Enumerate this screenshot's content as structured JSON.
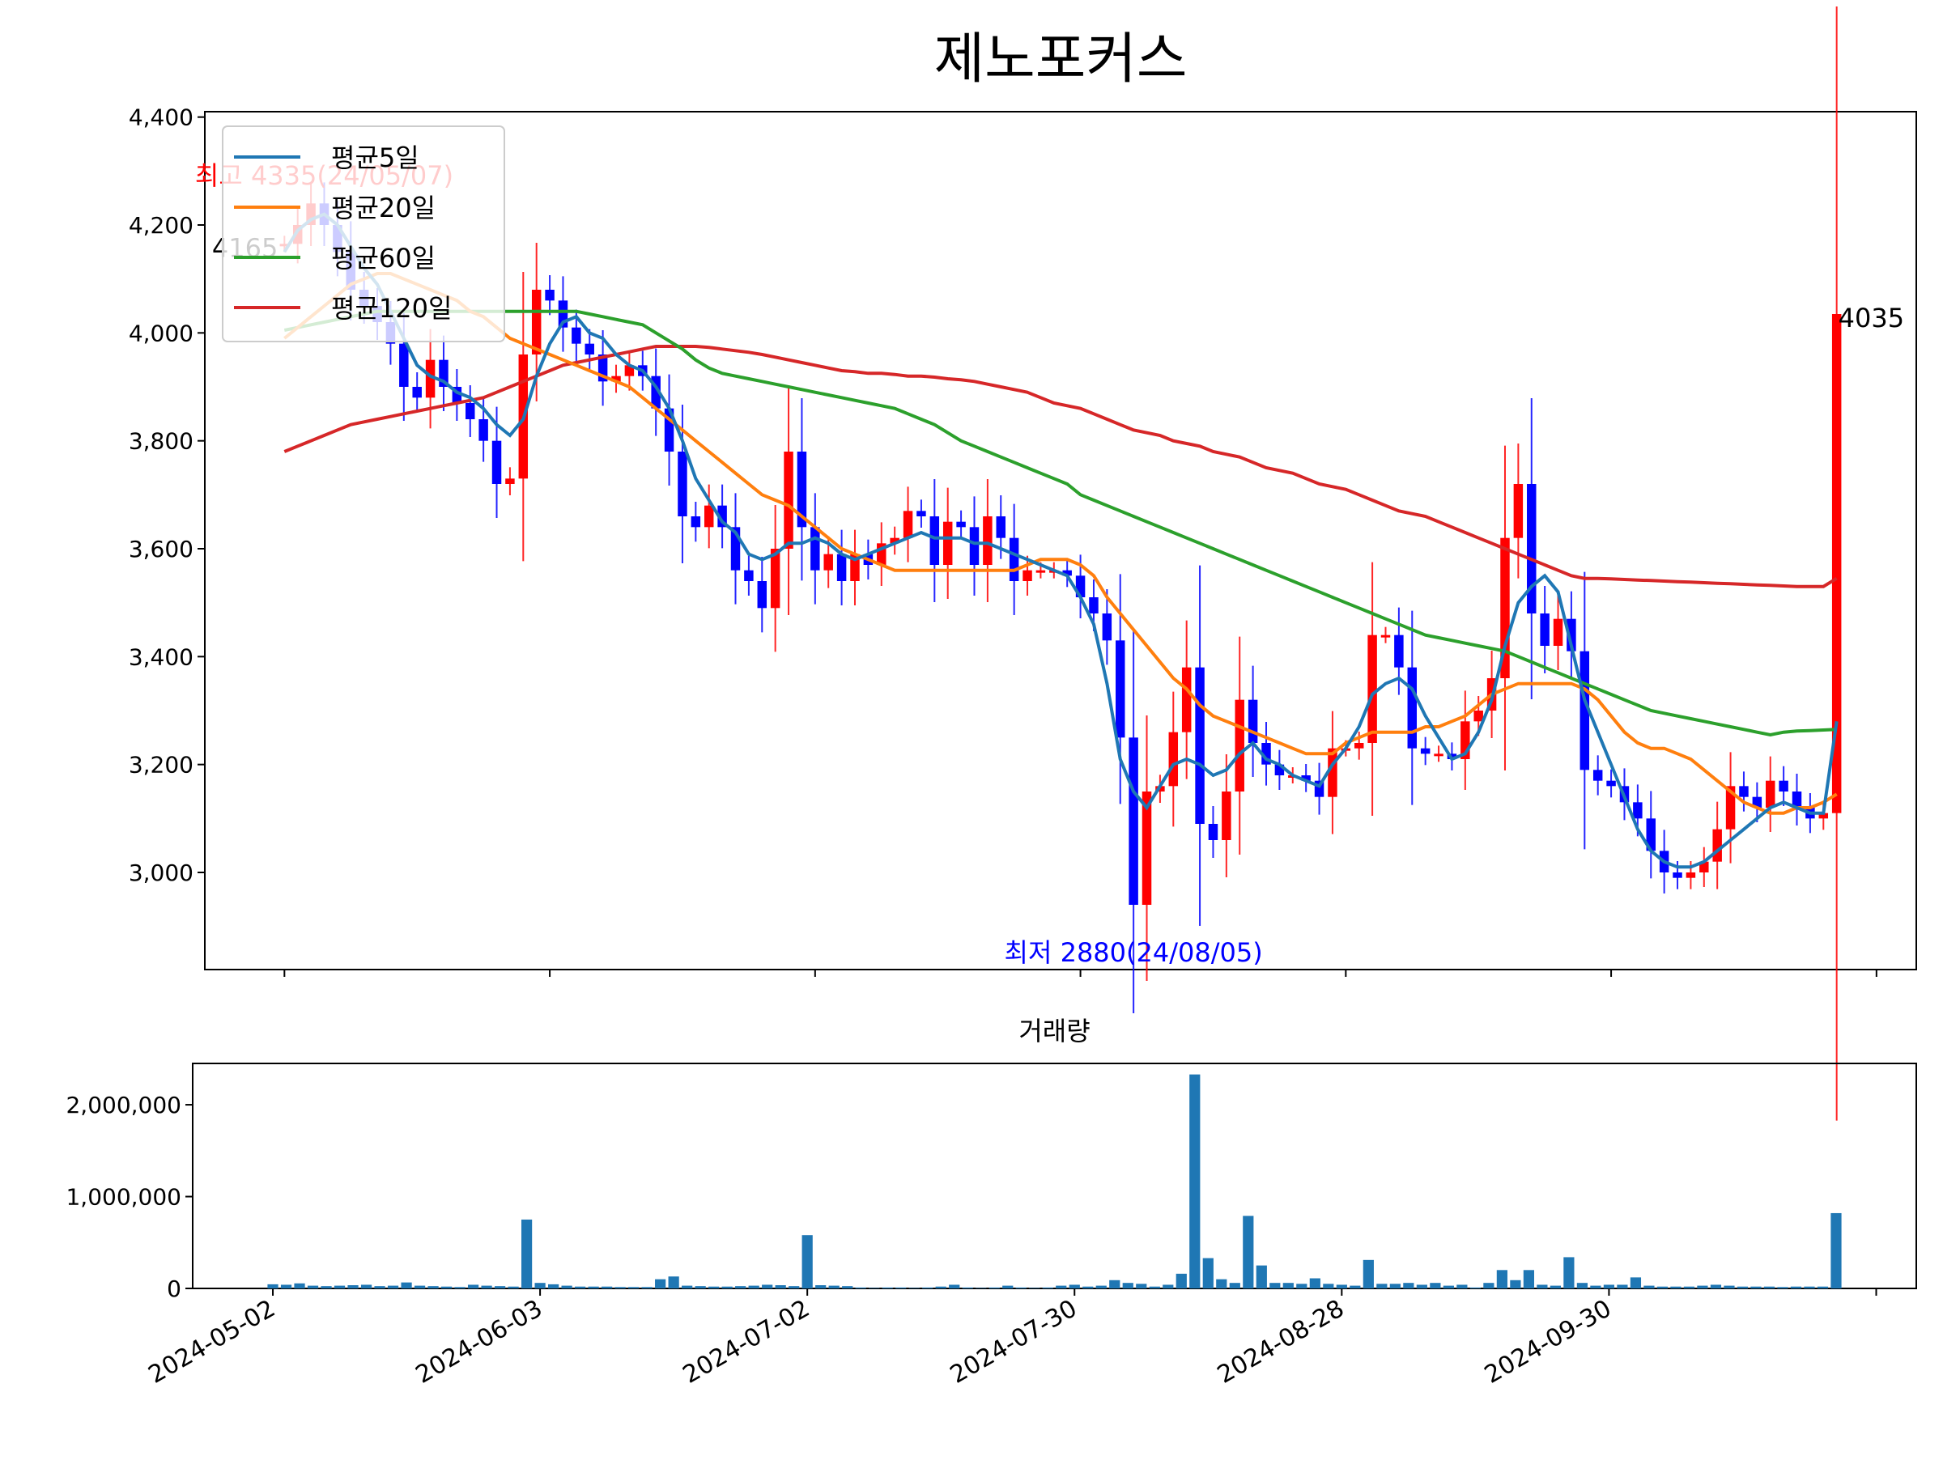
{
  "chart_data": {
    "type": "candlestick",
    "title": "제노포커스",
    "subplot_title": "거래량",
    "price_axis": {
      "ylim": [
        2820,
        4410
      ],
      "ticks": [
        3000,
        3200,
        3400,
        3600,
        3800,
        4000,
        4200,
        4400
      ],
      "tick_labels": [
        "3,000",
        "3,200",
        "3,400",
        "3,600",
        "3,800",
        "4,000",
        "4,200",
        "4,400"
      ]
    },
    "volume_axis": {
      "ylim": [
        0,
        2450000
      ],
      "ticks": [
        0,
        1000000,
        2000000
      ],
      "tick_labels": [
        "0",
        "1,000,000",
        "2,000,000"
      ]
    },
    "x_tick_labels": [
      "2024-05-02",
      "2024-06-03",
      "2024-07-02",
      "2024-07-30",
      "2024-08-28",
      "2024-09-30"
    ],
    "x_tick_index": [
      0,
      20,
      40,
      60,
      80,
      100,
      120
    ],
    "n_sessions": 118,
    "x_padding_sessions": 6,
    "legend": {
      "placement": "upper-left",
      "items": [
        "평균5일",
        "평균20일",
        "평균60일",
        "평균120일"
      ]
    },
    "colors": {
      "up": "#ff0000",
      "down": "#0000ff",
      "ma5": "#1f77b4",
      "ma20": "#ff7f0e",
      "ma60": "#2ca02c",
      "ma120": "#d62728",
      "volume": "#1f77b4",
      "max_label": "#ff0000",
      "min_label": "#0000ff"
    },
    "annotations": {
      "max_label": "최고 4335(24/05/07)",
      "min_label": "최저 2880(24/08/05)",
      "first_close_label": "4165",
      "last_close_label": "4035",
      "max_value": 4335,
      "min_value": 2880,
      "max_index": 3,
      "min_index": 64
    },
    "closes": [
      4165,
      4200,
      4240,
      4200,
      4150,
      4080,
      4050,
      4020,
      3980,
      3900,
      3880,
      3950,
      3900,
      3870,
      3840,
      3800,
      3720,
      3730,
      3960,
      4080,
      4060,
      4010,
      3980,
      3960,
      3910,
      3920,
      3940,
      3920,
      3860,
      3780,
      3660,
      3640,
      3680,
      3640,
      3560,
      3540,
      3490,
      3600,
      3780,
      3640,
      3560,
      3590,
      3540,
      3590,
      3570,
      3610,
      3620,
      3670,
      3660,
      3570,
      3650,
      3640,
      3570,
      3660,
      3620,
      3540,
      3560,
      3560,
      3560,
      3550,
      3510,
      3480,
      3430,
      3250,
      2940,
      3150,
      3160,
      3260,
      3380,
      3090,
      3060,
      3150,
      3320,
      3240,
      3200,
      3180,
      3180,
      3170,
      3140,
      3230,
      3230,
      3240,
      3440,
      3440,
      3380,
      3230,
      3220,
      3220,
      3210,
      3280,
      3300,
      3360,
      3620,
      3720,
      3480,
      3420,
      3470,
      3410,
      3190,
      3170,
      3160,
      3130,
      3100,
      3040,
      3000,
      2990,
      3000,
      3020,
      3080,
      3160,
      3140,
      3120,
      3170,
      3150,
      3120,
      3100,
      3110,
      4035
    ],
    "ma5": [
      4150,
      4190,
      4210,
      4220,
      4200,
      4160,
      4120,
      4090,
      4040,
      3990,
      3940,
      3920,
      3910,
      3890,
      3880,
      3860,
      3830,
      3810,
      3840,
      3920,
      3980,
      4020,
      4030,
      4000,
      3990,
      3960,
      3940,
      3930,
      3900,
      3860,
      3800,
      3730,
      3690,
      3650,
      3630,
      3590,
      3580,
      3590,
      3610,
      3610,
      3620,
      3610,
      3590,
      3580,
      3590,
      3600,
      3610,
      3620,
      3630,
      3620,
      3620,
      3620,
      3610,
      3610,
      3600,
      3590,
      3580,
      3570,
      3560,
      3550,
      3510,
      3460,
      3350,
      3210,
      3150,
      3120,
      3160,
      3200,
      3210,
      3200,
      3180,
      3190,
      3220,
      3240,
      3210,
      3200,
      3180,
      3170,
      3160,
      3200,
      3230,
      3270,
      3330,
      3350,
      3360,
      3340,
      3290,
      3250,
      3210,
      3220,
      3260,
      3320,
      3420,
      3500,
      3530,
      3550,
      3520,
      3420,
      3320,
      3260,
      3200,
      3140,
      3080,
      3040,
      3020,
      3010,
      3010,
      3020,
      3040,
      3060,
      3080,
      3100,
      3120,
      3130,
      3120,
      3110,
      3110,
      3280
    ],
    "ma20": [
      3990,
      4010,
      4030,
      4050,
      4070,
      4090,
      4100,
      4110,
      4110,
      4100,
      4090,
      4080,
      4070,
      4060,
      4040,
      4030,
      4010,
      3990,
      3980,
      3970,
      3960,
      3950,
      3940,
      3930,
      3920,
      3910,
      3900,
      3880,
      3860,
      3840,
      3820,
      3800,
      3780,
      3760,
      3740,
      3720,
      3700,
      3690,
      3680,
      3660,
      3640,
      3620,
      3600,
      3590,
      3580,
      3570,
      3560,
      3560,
      3560,
      3560,
      3560,
      3560,
      3560,
      3560,
      3560,
      3560,
      3570,
      3580,
      3580,
      3580,
      3570,
      3550,
      3510,
      3480,
      3450,
      3420,
      3390,
      3360,
      3340,
      3310,
      3290,
      3280,
      3270,
      3260,
      3250,
      3240,
      3230,
      3220,
      3220,
      3220,
      3240,
      3250,
      3260,
      3260,
      3260,
      3260,
      3270,
      3270,
      3280,
      3290,
      3310,
      3330,
      3340,
      3350,
      3350,
      3350,
      3350,
      3350,
      3340,
      3320,
      3290,
      3260,
      3240,
      3230,
      3230,
      3220,
      3210,
      3190,
      3170,
      3150,
      3130,
      3120,
      3110,
      3110,
      3120,
      3120,
      3130,
      3145
    ],
    "ma60": [
      4005,
      4010,
      4015,
      4020,
      4025,
      4030,
      4035,
      4040,
      4040,
      4040,
      4040,
      4040,
      4040,
      4040,
      4040,
      4040,
      4040,
      4040,
      4040,
      4040,
      4040,
      4040,
      4040,
      4035,
      4030,
      4025,
      4020,
      4015,
      4000,
      3985,
      3970,
      3950,
      3935,
      3925,
      3920,
      3915,
      3910,
      3905,
      3900,
      3895,
      3890,
      3885,
      3880,
      3875,
      3870,
      3865,
      3860,
      3850,
      3840,
      3830,
      3815,
      3800,
      3790,
      3780,
      3770,
      3760,
      3750,
      3740,
      3730,
      3720,
      3700,
      3690,
      3680,
      3670,
      3660,
      3650,
      3640,
      3630,
      3620,
      3610,
      3600,
      3590,
      3580,
      3570,
      3560,
      3550,
      3540,
      3530,
      3520,
      3510,
      3500,
      3490,
      3480,
      3470,
      3460,
      3450,
      3440,
      3435,
      3430,
      3425,
      3420,
      3415,
      3410,
      3400,
      3390,
      3380,
      3370,
      3360,
      3350,
      3340,
      3330,
      3320,
      3310,
      3300,
      3295,
      3290,
      3285,
      3280,
      3275,
      3270,
      3265,
      3260,
      3255,
      3260,
      3262,
      3263,
      3264,
      3265
    ],
    "ma120": [
      3780,
      3790,
      3800,
      3810,
      3820,
      3830,
      3835,
      3840,
      3845,
      3850,
      3855,
      3860,
      3865,
      3870,
      3875,
      3880,
      3890,
      3900,
      3910,
      3920,
      3930,
      3940,
      3945,
      3950,
      3955,
      3960,
      3965,
      3970,
      3975,
      3975,
      3975,
      3975,
      3973,
      3970,
      3967,
      3964,
      3960,
      3955,
      3950,
      3945,
      3940,
      3935,
      3930,
      3928,
      3925,
      3925,
      3923,
      3920,
      3920,
      3918,
      3915,
      3913,
      3910,
      3905,
      3900,
      3895,
      3890,
      3880,
      3870,
      3865,
      3860,
      3850,
      3840,
      3830,
      3820,
      3815,
      3810,
      3800,
      3795,
      3790,
      3780,
      3775,
      3770,
      3760,
      3750,
      3745,
      3740,
      3730,
      3720,
      3715,
      3710,
      3700,
      3690,
      3680,
      3670,
      3665,
      3660,
      3650,
      3640,
      3630,
      3620,
      3610,
      3600,
      3590,
      3580,
      3570,
      3560,
      3550,
      3545,
      3545,
      3544,
      3543,
      3542,
      3541,
      3540,
      3539,
      3538,
      3537,
      3536,
      3535,
      3534,
      3533,
      3532,
      3531,
      3530,
      3530,
      3530,
      3545
    ],
    "volume": [
      45000,
      40000,
      55000,
      30000,
      25000,
      30000,
      35000,
      40000,
      25000,
      30000,
      65000,
      30000,
      25000,
      20000,
      15000,
      40000,
      30000,
      25000,
      20000,
      750000,
      60000,
      45000,
      30000,
      20000,
      20000,
      20000,
      15000,
      15000,
      15000,
      100000,
      130000,
      30000,
      25000,
      20000,
      20000,
      25000,
      30000,
      40000,
      35000,
      25000,
      580000,
      35000,
      30000,
      25000,
      10000,
      5000,
      10000,
      10000,
      5000,
      10000,
      20000,
      40000,
      10000,
      5000,
      10000,
      30000,
      10000,
      5000,
      10000,
      30000,
      40000,
      20000,
      30000,
      90000,
      60000,
      50000,
      20000,
      40000,
      160000,
      2330000,
      330000,
      100000,
      60000,
      790000,
      250000,
      60000,
      60000,
      50000,
      110000,
      50000,
      40000,
      30000,
      310000,
      50000,
      50000,
      60000,
      40000,
      60000,
      30000,
      40000,
      10000,
      60000,
      200000,
      90000,
      200000,
      40000,
      30000,
      340000,
      60000,
      30000,
      40000,
      40000,
      120000,
      30000,
      20000,
      20000,
      20000,
      30000,
      40000,
      30000,
      20000,
      20000,
      20000,
      15000,
      20000,
      20000,
      20000,
      820000
    ]
  }
}
